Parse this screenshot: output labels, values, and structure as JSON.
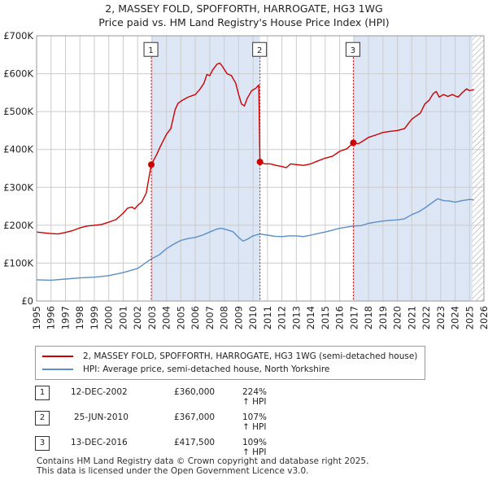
{
  "title_line1": "2, MASSEY FOLD, SPOFFORTH, HARROGATE, HG3 1WG",
  "title_line2": "Price paid vs. HM Land Registry's House Price Index (HPI)",
  "colors": {
    "property": "#cc0000",
    "hpi": "#5b8fc9",
    "shade": "#dce6f5",
    "grid": "#cccccc",
    "marker_line": "#cc0000"
  },
  "chart_data": {
    "type": "line",
    "x_range": [
      1995,
      2026
    ],
    "ylim": [
      0,
      700000
    ],
    "y_ticks": [
      {
        "value": 0,
        "label": "£0"
      },
      {
        "value": 100000,
        "label": "£100K"
      },
      {
        "value": 200000,
        "label": "£200K"
      },
      {
        "value": 300000,
        "label": "£300K"
      },
      {
        "value": 400000,
        "label": "£400K"
      },
      {
        "value": 500000,
        "label": "£500K"
      },
      {
        "value": 600000,
        "label": "£600K"
      },
      {
        "value": 700000,
        "label": "£700K"
      }
    ],
    "x_ticks": [
      1995,
      1996,
      1997,
      1998,
      1999,
      2000,
      2001,
      2002,
      2003,
      2004,
      2005,
      2006,
      2007,
      2008,
      2009,
      2010,
      2011,
      2012,
      2013,
      2014,
      2015,
      2016,
      2017,
      2018,
      2019,
      2020,
      2021,
      2022,
      2023,
      2024,
      2025,
      2026
    ],
    "shaded_ranges": [
      [
        2002.95,
        2010.48
      ],
      [
        2016.95,
        2025.2
      ]
    ],
    "hatched_range": [
      2025.2,
      2026
    ],
    "series": [
      {
        "name": "2, MASSEY FOLD, SPOFFORTH, HARROGATE, HG3 1WG (semi-detached house)",
        "color": "#cc0000",
        "points": [
          [
            1995.0,
            182000
          ],
          [
            1995.5,
            180000
          ],
          [
            1996.0,
            178000
          ],
          [
            1996.5,
            177000
          ],
          [
            1997.0,
            181000
          ],
          [
            1997.5,
            186000
          ],
          [
            1998.0,
            193000
          ],
          [
            1998.5,
            198000
          ],
          [
            1999.0,
            200000
          ],
          [
            1999.5,
            202000
          ],
          [
            2000.0,
            208000
          ],
          [
            2000.5,
            215000
          ],
          [
            2001.0,
            232000
          ],
          [
            2001.3,
            245000
          ],
          [
            2001.6,
            248000
          ],
          [
            2001.8,
            243000
          ],
          [
            2002.0,
            252000
          ],
          [
            2002.3,
            262000
          ],
          [
            2002.6,
            285000
          ],
          [
            2002.95,
            360000
          ],
          [
            2003.3,
            385000
          ],
          [
            2003.6,
            410000
          ],
          [
            2004.0,
            440000
          ],
          [
            2004.3,
            455000
          ],
          [
            2004.6,
            505000
          ],
          [
            2004.8,
            522000
          ],
          [
            2005.1,
            530000
          ],
          [
            2005.5,
            538000
          ],
          [
            2006.0,
            545000
          ],
          [
            2006.3,
            558000
          ],
          [
            2006.6,
            575000
          ],
          [
            2006.8,
            598000
          ],
          [
            2007.0,
            595000
          ],
          [
            2007.2,
            610000
          ],
          [
            2007.5,
            625000
          ],
          [
            2007.7,
            628000
          ],
          [
            2007.9,
            618000
          ],
          [
            2008.2,
            600000
          ],
          [
            2008.5,
            595000
          ],
          [
            2008.8,
            575000
          ],
          [
            2009.0,
            545000
          ],
          [
            2009.2,
            520000
          ],
          [
            2009.4,
            515000
          ],
          [
            2009.6,
            535000
          ],
          [
            2009.9,
            555000
          ],
          [
            2010.2,
            562000
          ],
          [
            2010.4,
            570000
          ],
          [
            2010.48,
            367000
          ],
          [
            2010.8,
            362000
          ],
          [
            2011.2,
            362000
          ],
          [
            2011.6,
            358000
          ],
          [
            2012.0,
            355000
          ],
          [
            2012.3,
            352000
          ],
          [
            2012.6,
            362000
          ],
          [
            2013.0,
            360000
          ],
          [
            2013.5,
            358000
          ],
          [
            2014.0,
            362000
          ],
          [
            2014.5,
            370000
          ],
          [
            2015.0,
            377000
          ],
          [
            2015.5,
            382000
          ],
          [
            2016.0,
            395000
          ],
          [
            2016.5,
            402000
          ],
          [
            2016.95,
            417500
          ],
          [
            2017.3,
            415000
          ],
          [
            2017.6,
            422000
          ],
          [
            2018.0,
            432000
          ],
          [
            2018.5,
            438000
          ],
          [
            2019.0,
            445000
          ],
          [
            2019.5,
            448000
          ],
          [
            2020.0,
            450000
          ],
          [
            2020.5,
            455000
          ],
          [
            2020.8,
            470000
          ],
          [
            2021.0,
            480000
          ],
          [
            2021.3,
            488000
          ],
          [
            2021.6,
            496000
          ],
          [
            2021.9,
            520000
          ],
          [
            2022.2,
            530000
          ],
          [
            2022.5,
            548000
          ],
          [
            2022.7,
            553000
          ],
          [
            2022.9,
            538000
          ],
          [
            2023.2,
            545000
          ],
          [
            2023.5,
            540000
          ],
          [
            2023.8,
            545000
          ],
          [
            2024.2,
            538000
          ],
          [
            2024.5,
            550000
          ],
          [
            2024.8,
            560000
          ],
          [
            2025.0,
            555000
          ],
          [
            2025.3,
            558000
          ]
        ]
      },
      {
        "name": "HPI: Average price, semi-detached house, North Yorkshire",
        "color": "#5b8fc9",
        "points": [
          [
            1995.0,
            56000
          ],
          [
            1996.0,
            55000
          ],
          [
            1997.0,
            58000
          ],
          [
            1998.0,
            61000
          ],
          [
            1999.0,
            63000
          ],
          [
            2000.0,
            67000
          ],
          [
            2001.0,
            75000
          ],
          [
            2002.0,
            86000
          ],
          [
            2002.95,
            111000
          ],
          [
            2003.5,
            122000
          ],
          [
            2004.0,
            138000
          ],
          [
            2004.5,
            150000
          ],
          [
            2005.0,
            160000
          ],
          [
            2005.5,
            165000
          ],
          [
            2006.0,
            168000
          ],
          [
            2006.5,
            174000
          ],
          [
            2007.0,
            182000
          ],
          [
            2007.5,
            190000
          ],
          [
            2007.8,
            192000
          ],
          [
            2008.2,
            188000
          ],
          [
            2008.6,
            183000
          ],
          [
            2009.0,
            168000
          ],
          [
            2009.3,
            158000
          ],
          [
            2009.6,
            163000
          ],
          [
            2010.0,
            172000
          ],
          [
            2010.48,
            177000
          ],
          [
            2011.0,
            174000
          ],
          [
            2011.5,
            171000
          ],
          [
            2012.0,
            170000
          ],
          [
            2012.5,
            172000
          ],
          [
            2013.0,
            172000
          ],
          [
            2013.5,
            170000
          ],
          [
            2014.0,
            174000
          ],
          [
            2014.5,
            178000
          ],
          [
            2015.0,
            182000
          ],
          [
            2015.5,
            187000
          ],
          [
            2016.0,
            192000
          ],
          [
            2016.95,
            198000
          ],
          [
            2017.5,
            199000
          ],
          [
            2018.0,
            205000
          ],
          [
            2018.5,
            208000
          ],
          [
            2019.0,
            211000
          ],
          [
            2019.5,
            213000
          ],
          [
            2020.0,
            214000
          ],
          [
            2020.5,
            217000
          ],
          [
            2021.0,
            228000
          ],
          [
            2021.5,
            236000
          ],
          [
            2022.0,
            248000
          ],
          [
            2022.5,
            262000
          ],
          [
            2022.8,
            270000
          ],
          [
            2023.2,
            265000
          ],
          [
            2023.6,
            264000
          ],
          [
            2024.0,
            261000
          ],
          [
            2024.5,
            265000
          ],
          [
            2025.0,
            268000
          ],
          [
            2025.3,
            267000
          ]
        ]
      }
    ],
    "sales": [
      {
        "label": "1",
        "x": 2002.95,
        "y": 360000,
        "box_y": 663000
      },
      {
        "label": "2",
        "x": 2010.48,
        "y": 367000,
        "box_y": 663000
      },
      {
        "label": "3",
        "x": 2016.95,
        "y": 417500,
        "box_y": 663000
      }
    ]
  },
  "legend": {
    "property_label": "2, MASSEY FOLD, SPOFFORTH, HARROGATE, HG3 1WG (semi-detached house)",
    "hpi_label": "HPI: Average price, semi-detached house, North Yorkshire"
  },
  "sales_table": [
    {
      "num": "1",
      "date": "12-DEC-2002",
      "price": "£360,000",
      "hpi": "224% ↑ HPI"
    },
    {
      "num": "2",
      "date": "25-JUN-2010",
      "price": "£367,000",
      "hpi": "107% ↑ HPI"
    },
    {
      "num": "3",
      "date": "13-DEC-2016",
      "price": "£417,500",
      "hpi": "109% ↑ HPI"
    }
  ],
  "footer_line1": "Contains HM Land Registry data © Crown copyright and database right 2025.",
  "footer_line2": "This data is licensed under the Open Government Licence v3.0."
}
